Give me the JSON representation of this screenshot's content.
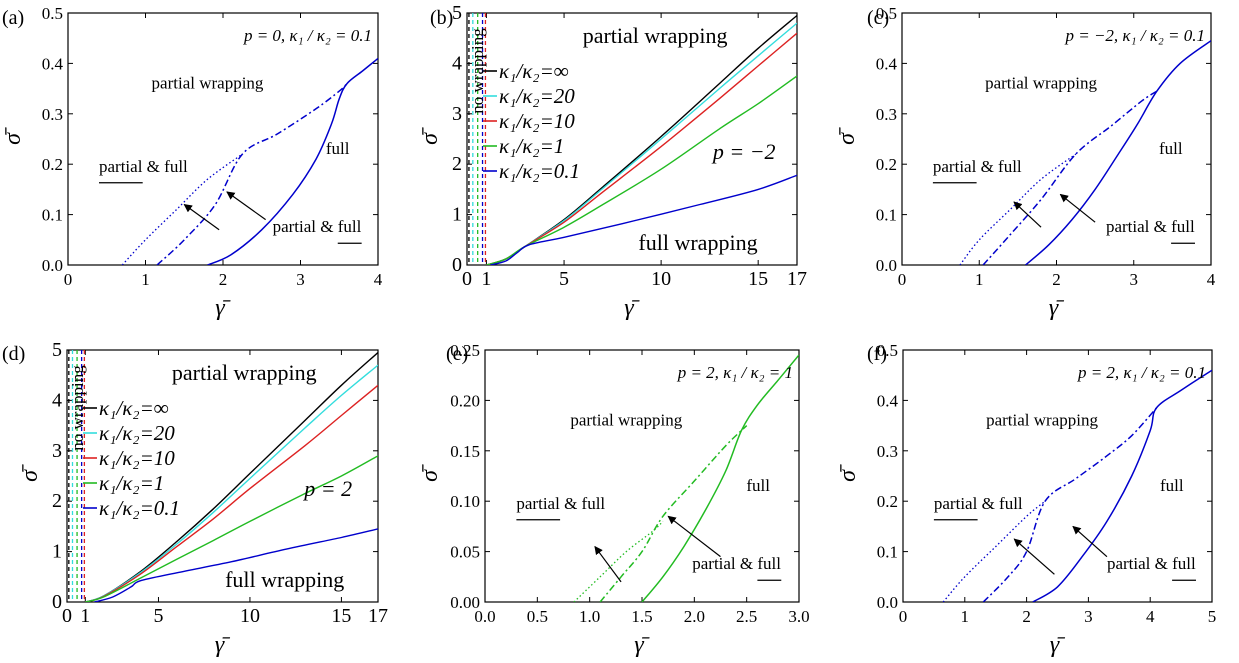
{
  "figure": {
    "panels": [
      {
        "tag": "(a)"
      },
      {
        "tag": "(b)"
      },
      {
        "tag": "(c)"
      },
      {
        "tag": "(d)"
      },
      {
        "tag": "(e)"
      },
      {
        "tag": "(f)"
      }
    ]
  },
  "chart_data": [
    {
      "panel": "(a)",
      "type": "line",
      "style": "phase",
      "xlabel": "γ̄",
      "ylabel": "σ̄",
      "xlim": [
        0,
        4
      ],
      "ylim": [
        0,
        0.5
      ],
      "xticks": [
        0,
        1,
        2,
        3,
        4
      ],
      "xtick_labels": [
        "0",
        "1",
        "2",
        "3",
        "4"
      ],
      "yticks": [
        0,
        0.1,
        0.2,
        0.3,
        0.4,
        0.5
      ],
      "ytick_labels": [
        "0.0",
        "0.1",
        "0.2",
        "0.3",
        "0.4",
        "0.5"
      ],
      "annotation": "p = 0, κ₁ / κ₂ = 0.1",
      "region_labels": {
        "partial": "partial wrapping",
        "full": "full",
        "partial_full_a": "partial & full",
        "partial_full_b": "partial & full"
      },
      "color": "#0000cc",
      "series": [
        {
          "style": "dotted",
          "x": [
            0.7,
            1.0,
            1.4,
            1.8,
            2.25
          ],
          "y": [
            0.0,
            0.05,
            0.11,
            0.17,
            0.22
          ]
        },
        {
          "style": "dashdot",
          "x": [
            1.15,
            1.5,
            1.9,
            2.25,
            2.7,
            3.2,
            3.5,
            3.6
          ],
          "y": [
            0.0,
            0.05,
            0.12,
            0.22,
            0.26,
            0.31,
            0.345,
            0.36
          ]
        },
        {
          "style": "solid",
          "x": [
            1.8,
            2.1,
            2.5,
            2.9,
            3.2,
            3.4,
            3.5,
            3.6,
            3.8,
            4.0
          ],
          "y": [
            0.0,
            0.02,
            0.07,
            0.14,
            0.21,
            0.28,
            0.33,
            0.36,
            0.385,
            0.41
          ]
        }
      ],
      "arrows": [
        {
          "from": [
            1.95,
            0.07
          ],
          "to": [
            1.5,
            0.12
          ]
        },
        {
          "from": [
            2.55,
            0.09
          ],
          "to": [
            2.05,
            0.145
          ]
        }
      ]
    },
    {
      "panel": "(b)",
      "type": "line",
      "style": "multi",
      "xlabel": "γ̄",
      "ylabel": "σ̄",
      "xlim": [
        0,
        17
      ],
      "ylim": [
        0,
        5
      ],
      "xticks": [
        0,
        1,
        5,
        10,
        15,
        17
      ],
      "xtick_labels": [
        "0",
        "1",
        "5",
        "10",
        "15",
        "17"
      ],
      "yticks": [
        0,
        1,
        2,
        3,
        4,
        5
      ],
      "ytick_labels": [
        "0",
        "1",
        "2",
        "3",
        "4",
        "5"
      ],
      "annotation": "p = −2",
      "region_labels": {
        "top": "partial wrapping",
        "bottom": "full wrapping",
        "left": "no wrapping"
      },
      "vlines": [
        {
          "x": 0.1,
          "color": "#000000"
        },
        {
          "x": 0.3,
          "color": "#33dddd"
        },
        {
          "x": 0.55,
          "color": "#22bb22"
        },
        {
          "x": 0.8,
          "color": "#0000cc"
        },
        {
          "x": 0.95,
          "color": "#dd2222"
        }
      ],
      "series": [
        {
          "name": "κ₁/κ₂=∞",
          "color": "#000000",
          "x": [
            1,
            2,
            3,
            5,
            7,
            10,
            13,
            15,
            17
          ],
          "y": [
            0.0,
            0.12,
            0.37,
            0.9,
            1.55,
            2.55,
            3.6,
            4.3,
            4.95
          ]
        },
        {
          "name": "κ₁/κ₂=20",
          "color": "#33dddd",
          "x": [
            1,
            2,
            3,
            5,
            7,
            10,
            13,
            15,
            17
          ],
          "y": [
            0.0,
            0.12,
            0.37,
            0.88,
            1.52,
            2.5,
            3.5,
            4.15,
            4.8
          ]
        },
        {
          "name": "κ₁/κ₂=10",
          "color": "#dd2222",
          "x": [
            1,
            2,
            3,
            5,
            7,
            10,
            13,
            15,
            17
          ],
          "y": [
            0.0,
            0.12,
            0.37,
            0.85,
            1.45,
            2.35,
            3.3,
            3.95,
            4.6
          ]
        },
        {
          "name": "κ₁/κ₂=1",
          "color": "#22bb22",
          "x": [
            1,
            2,
            3,
            5,
            7,
            10,
            13,
            15,
            17
          ],
          "y": [
            0.0,
            0.12,
            0.37,
            0.75,
            1.2,
            1.9,
            2.7,
            3.2,
            3.75
          ]
        },
        {
          "name": "κ₁/κ₂=0.1",
          "color": "#0000cc",
          "x": [
            1.2,
            2,
            2.6,
            3.2,
            5,
            8,
            12,
            15,
            17
          ],
          "y": [
            0.0,
            0.08,
            0.25,
            0.4,
            0.55,
            0.82,
            1.2,
            1.5,
            1.78
          ]
        }
      ]
    },
    {
      "panel": "(c)",
      "type": "line",
      "style": "phase",
      "xlabel": "γ̄",
      "ylabel": "σ̄",
      "xlim": [
        0,
        4
      ],
      "ylim": [
        0,
        0.5
      ],
      "xticks": [
        0,
        1,
        2,
        3,
        4
      ],
      "xtick_labels": [
        "0",
        "1",
        "2",
        "3",
        "4"
      ],
      "yticks": [
        0,
        0.1,
        0.2,
        0.3,
        0.4,
        0.5
      ],
      "ytick_labels": [
        "0.0",
        "0.1",
        "0.2",
        "0.3",
        "0.4",
        "0.5"
      ],
      "annotation": "p = −2, κ₁ / κ₂ = 0.1",
      "region_labels": {
        "partial": "partial wrapping",
        "full": "full",
        "partial_full_a": "partial & full",
        "partial_full_b": "partial & full"
      },
      "color": "#0000cc",
      "series": [
        {
          "style": "dotted",
          "x": [
            0.75,
            1.0,
            1.4,
            1.8,
            2.25
          ],
          "y": [
            0.0,
            0.05,
            0.11,
            0.17,
            0.22
          ]
        },
        {
          "style": "dashdot",
          "x": [
            1.05,
            1.4,
            1.8,
            2.25,
            2.7,
            3.1,
            3.3
          ],
          "y": [
            0.0,
            0.06,
            0.13,
            0.22,
            0.275,
            0.325,
            0.345
          ]
        },
        {
          "style": "solid",
          "x": [
            1.6,
            1.9,
            2.2,
            2.5,
            2.8,
            3.05,
            3.3,
            3.6,
            4.0
          ],
          "y": [
            0.0,
            0.04,
            0.09,
            0.15,
            0.22,
            0.28,
            0.345,
            0.4,
            0.445
          ]
        }
      ],
      "arrows": [
        {
          "from": [
            1.8,
            0.075
          ],
          "to": [
            1.45,
            0.125
          ]
        },
        {
          "from": [
            2.5,
            0.085
          ],
          "to": [
            2.05,
            0.14
          ]
        }
      ]
    },
    {
      "panel": "(d)",
      "type": "line",
      "style": "multi",
      "xlabel": "γ̄",
      "ylabel": "σ̄",
      "xlim": [
        0,
        17
      ],
      "ylim": [
        0,
        5
      ],
      "xticks": [
        0,
        1,
        5,
        10,
        15,
        17
      ],
      "xtick_labels": [
        "0",
        "1",
        "5",
        "10",
        "15",
        "17"
      ],
      "yticks": [
        0,
        1,
        2,
        3,
        4,
        5
      ],
      "ytick_labels": [
        "0",
        "1",
        "2",
        "3",
        "4",
        "5"
      ],
      "annotation": "p = 2",
      "region_labels": {
        "top": "partial wrapping",
        "bottom": "full wrapping",
        "left": "no wrapping"
      },
      "vlines": [
        {
          "x": 0.1,
          "color": "#000000"
        },
        {
          "x": 0.3,
          "color": "#33dddd"
        },
        {
          "x": 0.55,
          "color": "#22bb22"
        },
        {
          "x": 0.8,
          "color": "#0000cc"
        },
        {
          "x": 0.95,
          "color": "#dd2222"
        }
      ],
      "series": [
        {
          "name": "κ₁/κ₂=∞",
          "color": "#000000",
          "x": [
            1,
            2,
            4,
            6,
            8,
            10,
            13,
            15,
            17
          ],
          "y": [
            0.0,
            0.12,
            0.6,
            1.2,
            1.85,
            2.55,
            3.6,
            4.3,
            4.95
          ]
        },
        {
          "name": "κ₁/κ₂=20",
          "color": "#33dddd",
          "x": [
            1,
            2,
            4,
            6,
            8,
            10,
            13,
            15,
            17
          ],
          "y": [
            0.0,
            0.12,
            0.58,
            1.15,
            1.78,
            2.45,
            3.45,
            4.1,
            4.7
          ]
        },
        {
          "name": "κ₁/κ₂=10",
          "color": "#dd2222",
          "x": [
            1,
            2,
            4,
            6,
            8,
            10,
            13,
            15,
            17
          ],
          "y": [
            0.0,
            0.11,
            0.55,
            1.1,
            1.65,
            2.25,
            3.1,
            3.7,
            4.3
          ]
        },
        {
          "name": "κ₁/κ₂=1",
          "color": "#22bb22",
          "x": [
            1,
            2,
            4,
            6,
            8,
            10,
            13,
            15,
            17
          ],
          "y": [
            0.0,
            0.1,
            0.47,
            0.85,
            1.22,
            1.6,
            2.15,
            2.5,
            2.9
          ]
        },
        {
          "name": "κ₁/κ₂=0.1",
          "color": "#0000cc",
          "x": [
            1.5,
            2.5,
            3.5,
            4,
            6,
            9,
            12,
            15,
            17
          ],
          "y": [
            0.0,
            0.1,
            0.3,
            0.42,
            0.58,
            0.8,
            1.05,
            1.28,
            1.45
          ]
        }
      ]
    },
    {
      "panel": "(e)",
      "type": "line",
      "style": "phase",
      "xlabel": "γ̄",
      "ylabel": "σ̄",
      "xlim": [
        0,
        3
      ],
      "ylim": [
        0,
        0.25
      ],
      "xticks": [
        0,
        0.5,
        1.0,
        1.5,
        2.0,
        2.5,
        3.0
      ],
      "xtick_labels": [
        "0.0",
        "0.5",
        "1.0",
        "1.5",
        "2.0",
        "2.5",
        "3.0"
      ],
      "yticks": [
        0,
        0.05,
        0.1,
        0.15,
        0.2,
        0.25
      ],
      "ytick_labels": [
        "0.00",
        "0.05",
        "0.10",
        "0.15",
        "0.20",
        "0.25"
      ],
      "annotation": "p = 2, κ₁ / κ₂ = 1",
      "region_labels": {
        "partial": "partial wrapping",
        "full": "full",
        "partial_full_a": "partial & full",
        "partial_full_b": "partial & full"
      },
      "color": "#22bb22",
      "series": [
        {
          "style": "dotted",
          "x": [
            0.85,
            1.1,
            1.35,
            1.6,
            1.7
          ],
          "y": [
            0.0,
            0.025,
            0.05,
            0.07,
            0.08
          ]
        },
        {
          "style": "dashdot",
          "x": [
            1.1,
            1.3,
            1.5,
            1.7,
            2.0,
            2.3,
            2.5
          ],
          "y": [
            0.0,
            0.025,
            0.05,
            0.085,
            0.12,
            0.155,
            0.175
          ]
        },
        {
          "style": "solid",
          "x": [
            1.5,
            1.7,
            1.9,
            2.1,
            2.3,
            2.45,
            2.6,
            2.8,
            3.0
          ],
          "y": [
            0.0,
            0.025,
            0.055,
            0.09,
            0.13,
            0.17,
            0.195,
            0.22,
            0.245
          ]
        }
      ],
      "arrows": [
        {
          "from": [
            1.3,
            0.02
          ],
          "to": [
            1.05,
            0.055
          ]
        },
        {
          "from": [
            2.25,
            0.045
          ],
          "to": [
            1.75,
            0.085
          ]
        }
      ]
    },
    {
      "panel": "(f)",
      "type": "line",
      "style": "phase",
      "xlabel": "γ̄",
      "ylabel": "σ̄",
      "xlim": [
        0,
        5
      ],
      "ylim": [
        0,
        0.5
      ],
      "xticks": [
        0,
        1,
        2,
        3,
        4,
        5
      ],
      "xtick_labels": [
        "0",
        "1",
        "2",
        "3",
        "4",
        "5"
      ],
      "yticks": [
        0,
        0.1,
        0.2,
        0.3,
        0.4,
        0.5
      ],
      "ytick_labels": [
        "0.0",
        "0.1",
        "0.2",
        "0.3",
        "0.4",
        "0.5"
      ],
      "annotation": "p = 2, κ₁ / κ₂ = 0.1",
      "region_labels": {
        "partial": "partial wrapping",
        "full": "full",
        "partial_full_a": "partial & full",
        "partial_full_b": "partial & full"
      },
      "color": "#0000cc",
      "series": [
        {
          "style": "dotted",
          "x": [
            0.65,
            1.0,
            1.5,
            2.0,
            2.3
          ],
          "y": [
            0.0,
            0.05,
            0.11,
            0.17,
            0.2
          ]
        },
        {
          "style": "dashdot",
          "x": [
            1.3,
            1.7,
            2.0,
            2.3,
            2.8,
            3.3,
            3.7,
            4.1
          ],
          "y": [
            0.0,
            0.05,
            0.1,
            0.2,
            0.245,
            0.29,
            0.33,
            0.385
          ]
        },
        {
          "style": "solid",
          "x": [
            2.1,
            2.5,
            2.9,
            3.3,
            3.7,
            4.0,
            4.1,
            4.5,
            5.0
          ],
          "y": [
            0.0,
            0.03,
            0.09,
            0.16,
            0.25,
            0.34,
            0.385,
            0.42,
            0.46
          ]
        }
      ],
      "arrows": [
        {
          "from": [
            2.45,
            0.055
          ],
          "to": [
            1.8,
            0.125
          ]
        },
        {
          "from": [
            3.3,
            0.09
          ],
          "to": [
            2.75,
            0.15
          ]
        }
      ]
    }
  ]
}
